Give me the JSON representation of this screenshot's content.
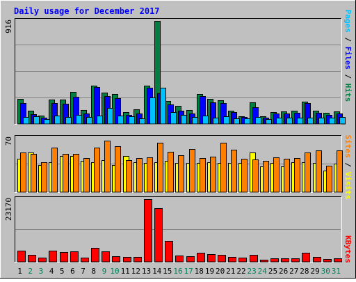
{
  "chart_data": {
    "type": "bar",
    "title": "Daily usage for December 2017",
    "days": [
      "1",
      "2",
      "3",
      "4",
      "5",
      "6",
      "7",
      "8",
      "9",
      "10",
      "11",
      "12",
      "13",
      "14",
      "15",
      "16",
      "17",
      "18",
      "19",
      "20",
      "21",
      "22",
      "23",
      "24",
      "25",
      "26",
      "27",
      "28",
      "29",
      "30",
      "31"
    ],
    "weekend_days": [
      "2",
      "3",
      "9",
      "10",
      "16",
      "17",
      "23",
      "24",
      "30",
      "31"
    ],
    "panels": {
      "hits": {
        "max_label": "916",
        "ylim": [
          0,
          916
        ],
        "axis_labels": [
          "Pages",
          "Files",
          "Hits"
        ],
        "series": [
          {
            "name": "Hits",
            "color": "#008040",
            "values": [
              220,
              120,
              75,
              215,
              215,
              285,
              125,
              340,
              280,
              265,
              105,
              130,
              340,
              916,
              205,
              160,
              125,
              265,
              225,
              210,
              120,
              70,
              190,
              65,
              105,
              110,
              120,
              195,
              115,
              100,
              110
            ]
          },
          {
            "name": "Files",
            "color": "#0000ff",
            "values": [
              185,
              85,
              55,
              185,
              180,
              240,
              90,
              330,
              250,
              230,
              80,
              95,
              320,
              275,
              175,
              120,
              95,
              245,
              190,
              185,
              105,
              60,
              150,
              55,
              90,
              95,
              100,
              185,
              100,
              80,
              90
            ]
          },
          {
            "name": "Pages",
            "color": "#00c0ff",
            "values": [
              60,
              65,
              45,
              75,
              60,
              80,
              60,
              75,
              140,
              75,
              65,
              50,
              235,
              320,
              105,
              80,
              60,
              75,
              55,
              70,
              50,
              50,
              60,
              45,
              55,
              55,
              55,
              55,
              55,
              55,
              60
            ]
          }
        ]
      },
      "visits": {
        "max_label": "70",
        "ylim": [
          0,
          70
        ],
        "axis_labels": [
          "Sites",
          "Visits"
        ],
        "series": [
          {
            "name": "Visits",
            "color": "#ffff00",
            "values": [
              43,
              51,
              35,
              39,
              47,
              47,
              40,
              39,
              41,
              35,
              47,
              39,
              38,
              39,
              40,
              38,
              38,
              38,
              39,
              38,
              38,
              38,
              51,
              33,
              38,
              33,
              39,
              39,
              38,
              28,
              37
            ]
          },
          {
            "name": "Sites",
            "color": "#ff8000",
            "values": [
              51,
              49,
              39,
              57,
              49,
              49,
              44,
              57,
              66,
              59,
              41,
              44,
              45,
              64,
              52,
              48,
              56,
              44,
              46,
              64,
              55,
              43,
              42,
              40,
              45,
              43,
              44,
              51,
              54,
              34,
              54
            ]
          }
        ]
      },
      "kbytes": {
        "max_label": "23170",
        "ylim": [
          0,
          23170
        ],
        "axis_labels": [
          "KBytes"
        ],
        "series": [
          {
            "name": "KBytes",
            "color": "#ff0000",
            "values": [
              4140,
              2660,
              1480,
              4040,
              3700,
              3760,
              1480,
              5130,
              3920,
              2110,
              1880,
              1910,
              23170,
              19730,
              7680,
              2250,
              2110,
              3420,
              2960,
              2470,
              1910,
              1560,
              2650,
              880,
              1250,
              1210,
              1260,
              3330,
              1680,
              920,
              1170
            ]
          }
        ]
      }
    }
  }
}
